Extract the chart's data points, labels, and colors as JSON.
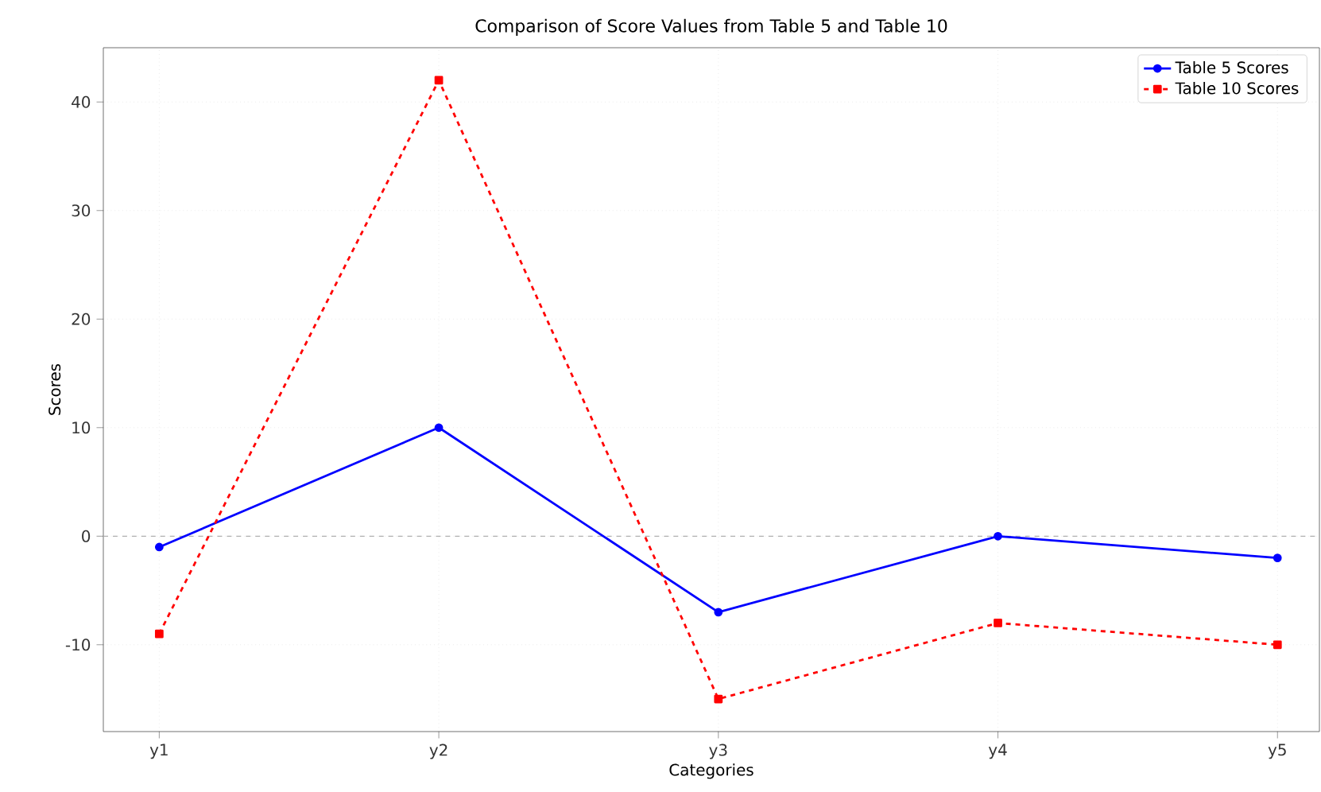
{
  "chart_data": {
    "type": "line",
    "title": "Comparison of Score Values from Table 5 and Table 10",
    "xlabel": "Categories",
    "ylabel": "Scores",
    "categories": [
      "y1",
      "y2",
      "y3",
      "y4",
      "y5"
    ],
    "series": [
      {
        "name": "Table 5 Scores",
        "color": "#0000ff",
        "values": [
          -1,
          10,
          -7,
          0,
          -2
        ],
        "marker": "circle",
        "line_style": "solid"
      },
      {
        "name": "Table 10 Scores",
        "color": "#ff0000",
        "values": [
          -9,
          42,
          -15,
          -8,
          -10
        ],
        "marker": "square",
        "line_style": "dashed"
      }
    ],
    "ylim": [
      -18,
      45
    ],
    "yticks": [
      -10,
      0,
      10,
      20,
      30,
      40
    ],
    "grid": true,
    "legend": "top right",
    "ref_lines": [
      {
        "axis": "y",
        "value": 0,
        "color": "#b0b0b0",
        "line_style": "dashed"
      }
    ]
  }
}
